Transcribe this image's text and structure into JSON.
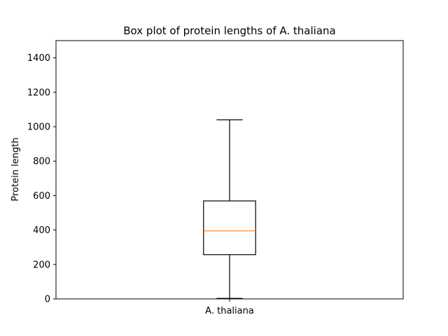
{
  "chart_data": {
    "type": "box",
    "title": "Box plot of protein lengths of A. thaliana",
    "xlabel": "",
    "ylabel": "Protein length",
    "ylim": [
      0,
      1500
    ],
    "yticks": [
      0,
      200,
      400,
      600,
      800,
      1000,
      1200,
      1400
    ],
    "categories": [
      "A. thaliana"
    ],
    "boxes": [
      {
        "category": "A. thaliana",
        "whisker_low": 3,
        "q1": 257,
        "median": 395,
        "q3": 569,
        "whisker_high": 1040
      }
    ],
    "grid": false,
    "colors": {
      "box": "#000000",
      "whisker": "#000000",
      "median": "#ff7f0e"
    }
  }
}
